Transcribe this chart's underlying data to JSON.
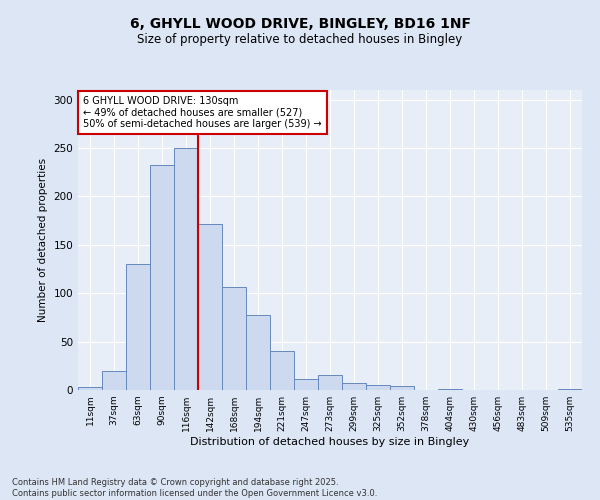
{
  "title1": "6, GHYLL WOOD DRIVE, BINGLEY, BD16 1NF",
  "title2": "Size of property relative to detached houses in Bingley",
  "xlabel": "Distribution of detached houses by size in Bingley",
  "ylabel": "Number of detached properties",
  "categories": [
    "11sqm",
    "37sqm",
    "63sqm",
    "90sqm",
    "116sqm",
    "142sqm",
    "168sqm",
    "194sqm",
    "221sqm",
    "247sqm",
    "273sqm",
    "299sqm",
    "325sqm",
    "352sqm",
    "378sqm",
    "404sqm",
    "430sqm",
    "456sqm",
    "483sqm",
    "509sqm",
    "535sqm"
  ],
  "values": [
    3,
    20,
    130,
    233,
    250,
    172,
    106,
    78,
    40,
    11,
    16,
    7,
    5,
    4,
    0,
    1,
    0,
    0,
    0,
    0,
    1
  ],
  "bar_color": "#ccd9ee",
  "bar_edge_color": "#6688bb",
  "vline_x": 4.5,
  "vline_color": "#cc0000",
  "annotation_text": "6 GHYLL WOOD DRIVE: 130sqm\n← 49% of detached houses are smaller (527)\n50% of semi-detached houses are larger (539) →",
  "annotation_box_color": "#ffffff",
  "annotation_box_edge": "#cc0000",
  "ylim": [
    0,
    310
  ],
  "yticks": [
    0,
    50,
    100,
    150,
    200,
    250,
    300
  ],
  "footer1": "Contains HM Land Registry data © Crown copyright and database right 2025.",
  "footer2": "Contains public sector information licensed under the Open Government Licence v3.0.",
  "bg_color": "#dce6f5",
  "plot_bg_color": "#e8eef8",
  "grid_color": "#ffffff",
  "title1_fontsize": 10,
  "title2_fontsize": 8.5,
  "xlabel_fontsize": 8,
  "ylabel_fontsize": 7.5,
  "xtick_fontsize": 6.5,
  "ytick_fontsize": 7.5,
  "annotation_fontsize": 7,
  "footer_fontsize": 6
}
